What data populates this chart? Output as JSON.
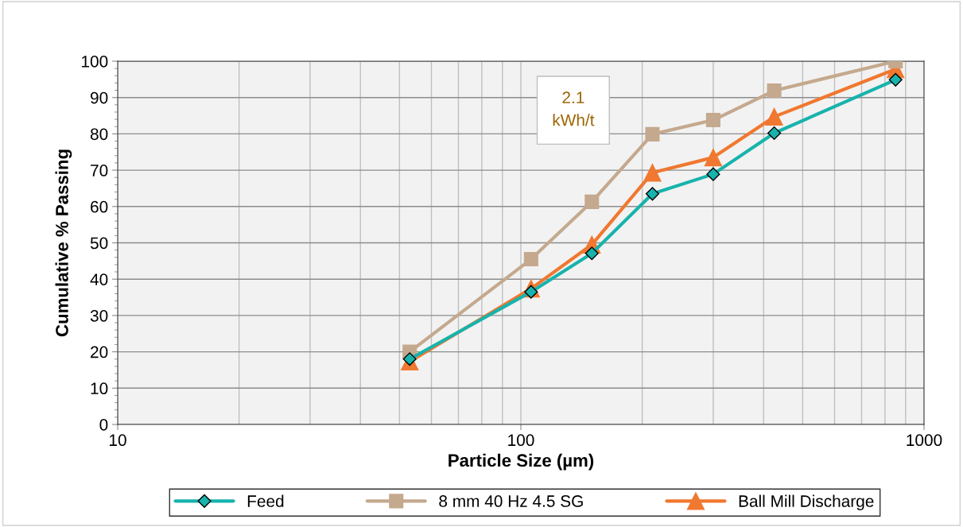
{
  "chart_data": {
    "type": "line",
    "xlabel": "Particle Size (µm)",
    "ylabel": "Cumulative % Passing",
    "x": [
      53,
      106,
      150,
      212,
      300,
      425,
      850
    ],
    "series": [
      {
        "name": "Feed",
        "color": "#17b3ac",
        "marker": "diamond",
        "values": [
          18,
          36.5,
          47.1,
          63.5,
          68.9,
          80.2,
          94.9
        ]
      },
      {
        "name": "8 mm 40 Hz 4.5 SG",
        "color": "#c4a98e",
        "marker": "square",
        "values": [
          20,
          45.5,
          61.3,
          79.9,
          83.8,
          91.9,
          100
        ]
      },
      {
        "name": "Ball Mill Discharge",
        "color": "#f07830",
        "marker": "triangle",
        "values": [
          17.3,
          37.4,
          49.5,
          69.3,
          73.5,
          84.7,
          97.8
        ]
      }
    ],
    "log": "x",
    "xlim": [
      10,
      1000
    ],
    "xticks": [
      10,
      100,
      1000
    ],
    "ylim": [
      0,
      100
    ],
    "yticks": [
      0,
      10,
      20,
      30,
      40,
      50,
      60,
      70,
      80,
      90,
      100
    ],
    "grid": true,
    "legend": "bottom",
    "line_style": "solid",
    "annotations": [
      "2.1\nkWh/t"
    ]
  }
}
